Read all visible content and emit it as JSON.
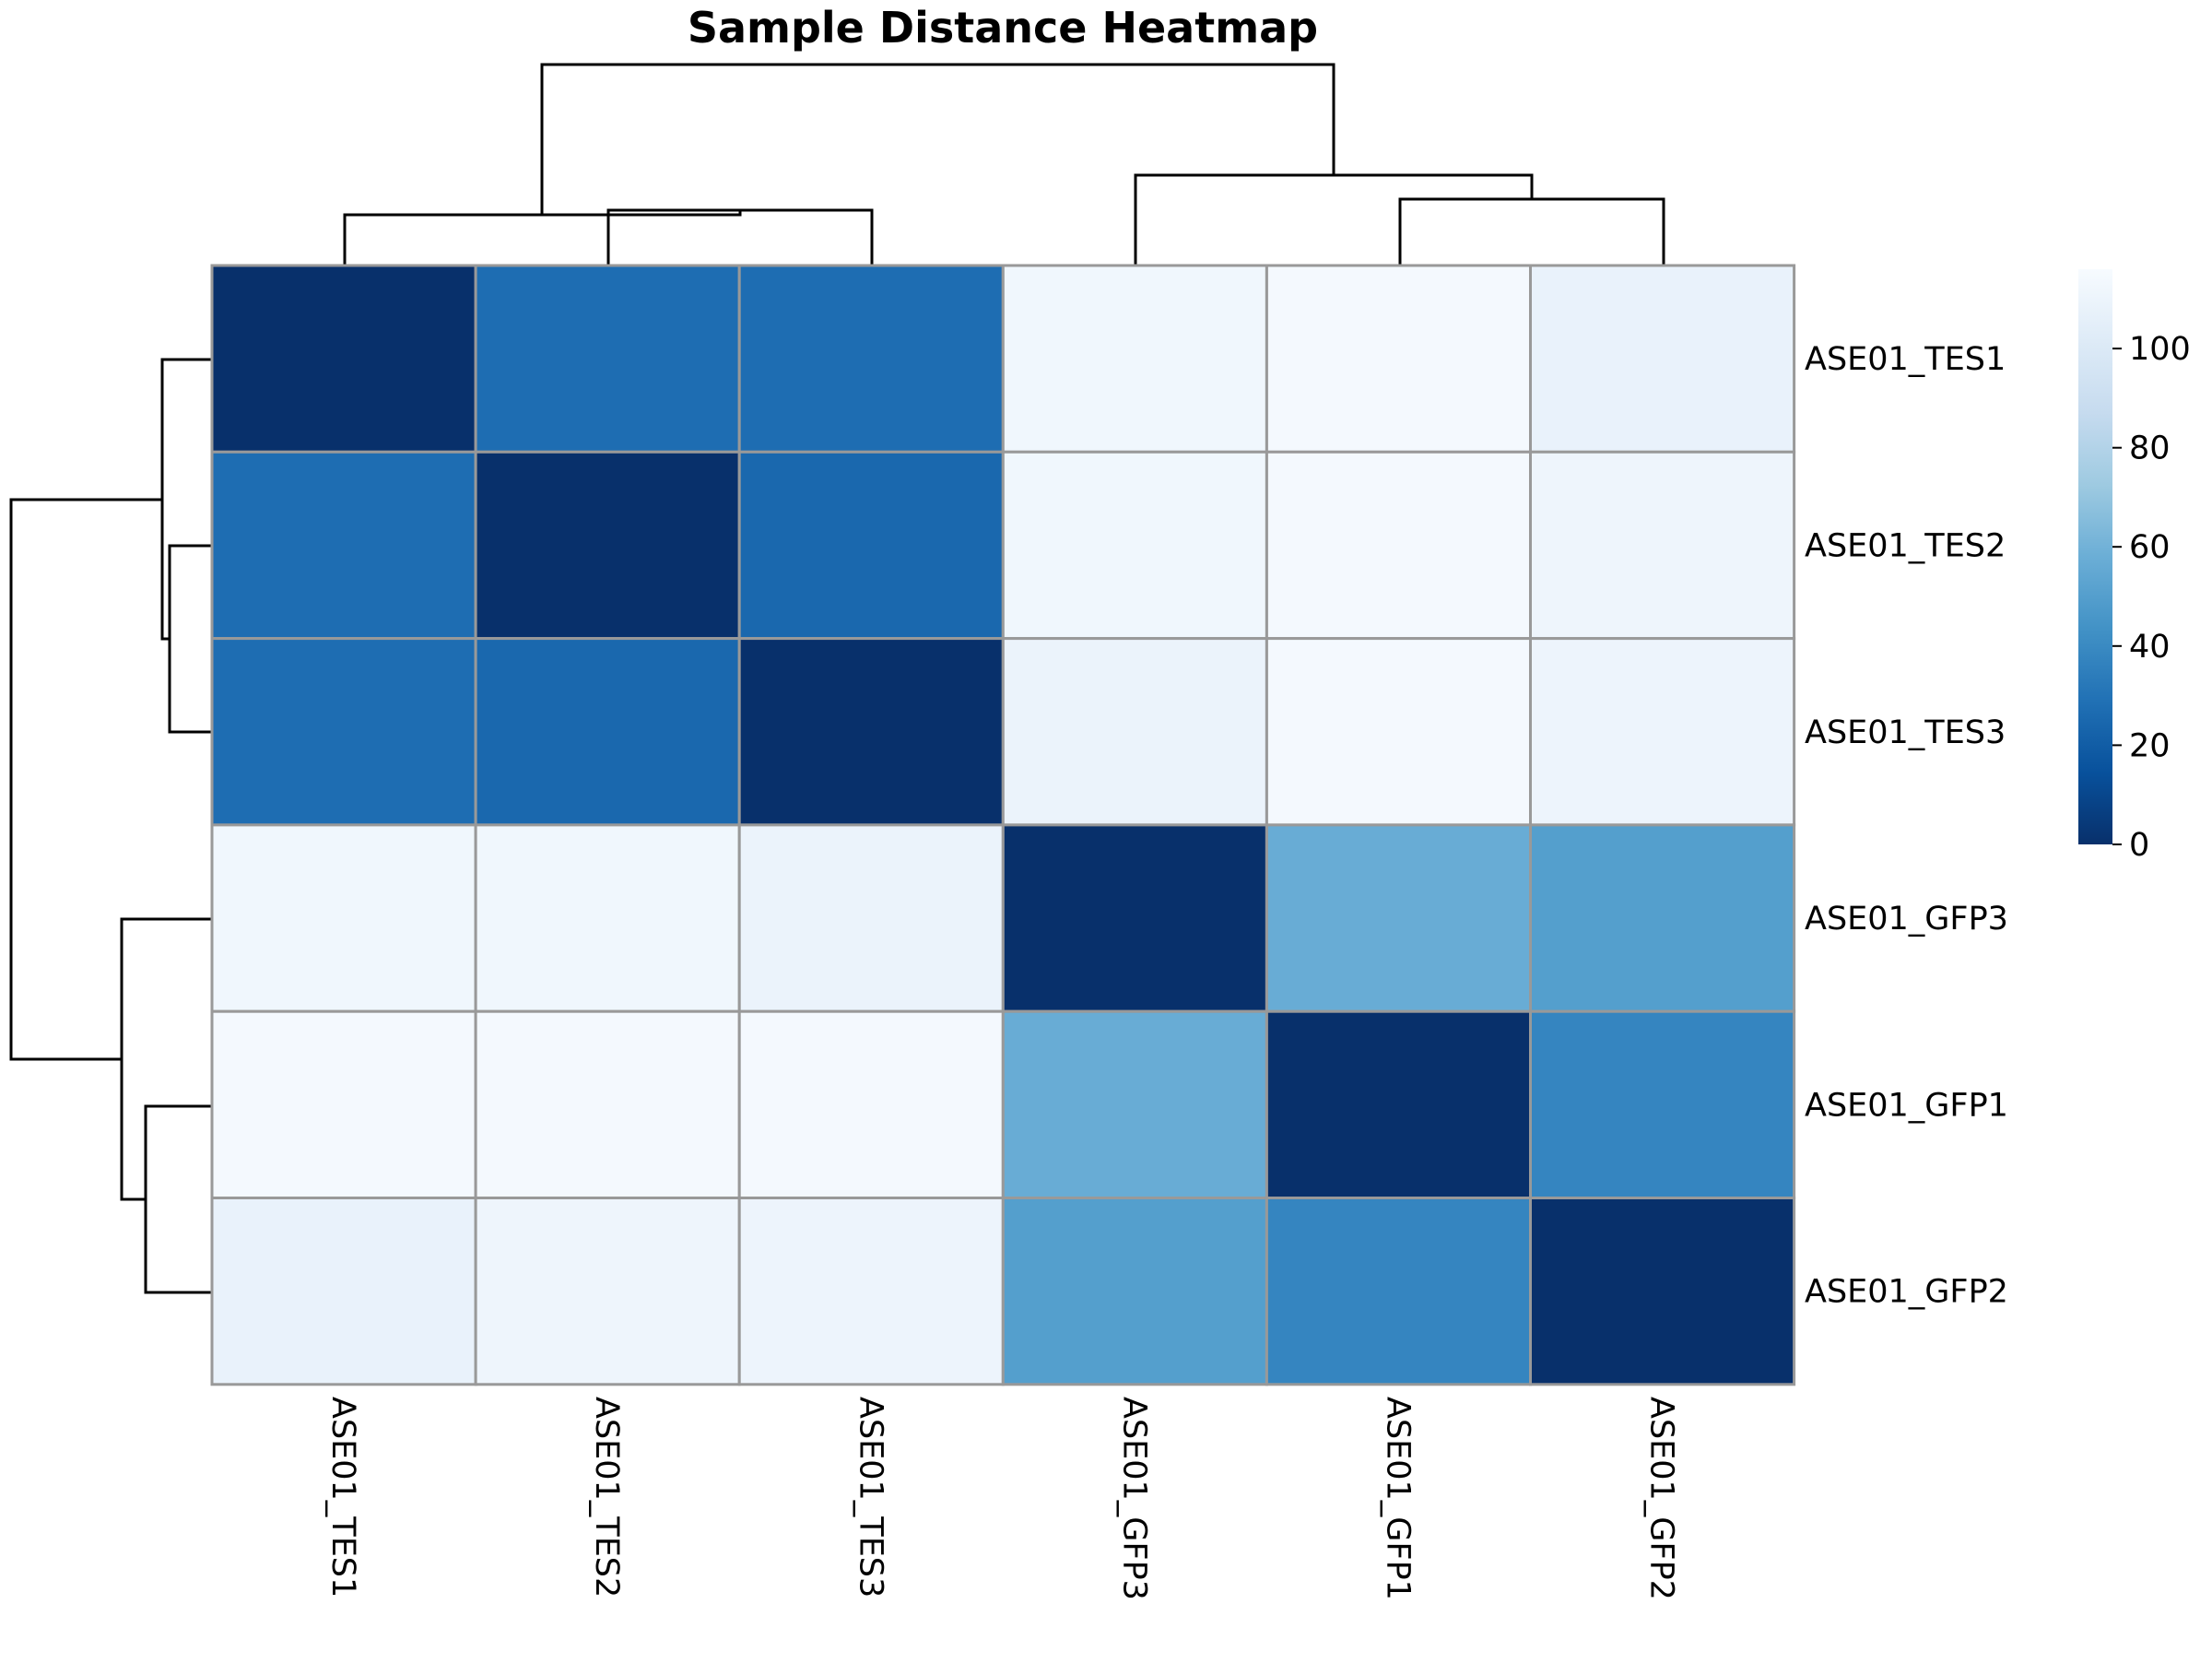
{
  "chart_data": {
    "type": "heatmap",
    "title": "Sample Distance Heatmap",
    "row_labels": [
      "ASE01_TES1",
      "ASE01_TES2",
      "ASE01_TES3",
      "ASE01_GFP3",
      "ASE01_GFP1",
      "ASE01_GFP2"
    ],
    "col_labels": [
      "ASE01_TES1",
      "ASE01_TES2",
      "ASE01_TES3",
      "ASE01_GFP3",
      "ASE01_GFP1",
      "ASE01_GFP2"
    ],
    "values": [
      [
        0,
        27,
        27,
        112,
        114,
        108
      ],
      [
        27,
        0,
        25,
        112,
        114,
        111
      ],
      [
        27,
        25,
        0,
        109,
        114,
        110
      ],
      [
        112,
        112,
        109,
        0,
        57,
        50
      ],
      [
        114,
        114,
        114,
        57,
        0,
        38
      ],
      [
        108,
        111,
        110,
        50,
        38,
        0
      ]
    ],
    "colorbar": {
      "min": 0,
      "max": 116,
      "ticks": [
        0,
        20,
        40,
        60,
        80,
        100
      ],
      "colormap": "Blues_r"
    },
    "row_dendrogram": true,
    "col_dendrogram": true,
    "colors": {
      "dark": "#08306b",
      "light": "#f7fbff",
      "grid": "#999999"
    }
  }
}
